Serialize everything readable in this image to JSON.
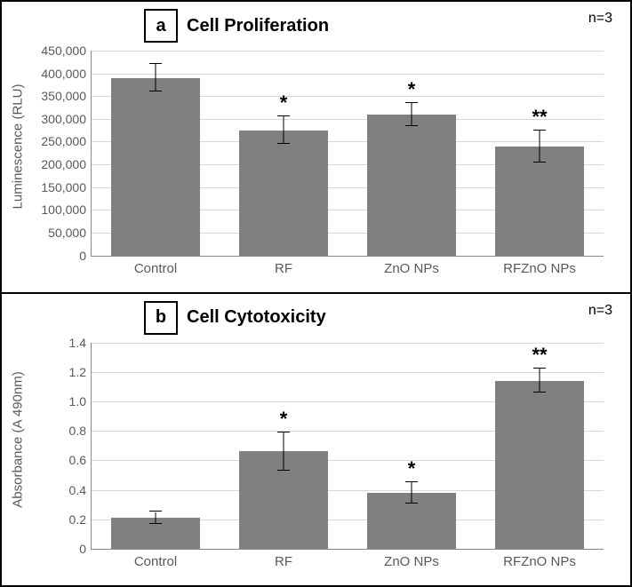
{
  "panels": [
    {
      "letter": "a",
      "title": "Cell Proliferation",
      "n_label": "n=3",
      "y_axis_title": "Luminescence (RLU)",
      "ylim": [
        0,
        450000
      ],
      "ytick_step": 50000,
      "tick_format": "comma",
      "background_color": "#ffffff",
      "grid_color": "#d9d9d9",
      "bar_color": "#808080",
      "bars": [
        {
          "label": "Control",
          "value": 390000,
          "err": 30000,
          "sig": ""
        },
        {
          "label": "RF",
          "value": 275000,
          "err": 30000,
          "sig": "*"
        },
        {
          "label": "ZnO NPs",
          "value": 310000,
          "err": 25000,
          "sig": "*"
        },
        {
          "label": "RFZnO NPs",
          "value": 240000,
          "err": 35000,
          "sig": "**"
        }
      ]
    },
    {
      "letter": "b",
      "title": "Cell Cytotoxicity",
      "n_label": "n=3",
      "y_axis_title": "Absorbance (A 490nm)",
      "ylim": [
        0,
        1.4
      ],
      "ytick_step": 0.2,
      "tick_format": "decimal1",
      "background_color": "#ffffff",
      "grid_color": "#d9d9d9",
      "bar_color": "#808080",
      "bars": [
        {
          "label": "Control",
          "value": 0.21,
          "err": 0.04,
          "sig": ""
        },
        {
          "label": "RF",
          "value": 0.66,
          "err": 0.13,
          "sig": "*"
        },
        {
          "label": "ZnO NPs",
          "value": 0.38,
          "err": 0.07,
          "sig": "*"
        },
        {
          "label": "RFZnO NPs",
          "value": 1.14,
          "err": 0.08,
          "sig": "**"
        }
      ]
    }
  ]
}
